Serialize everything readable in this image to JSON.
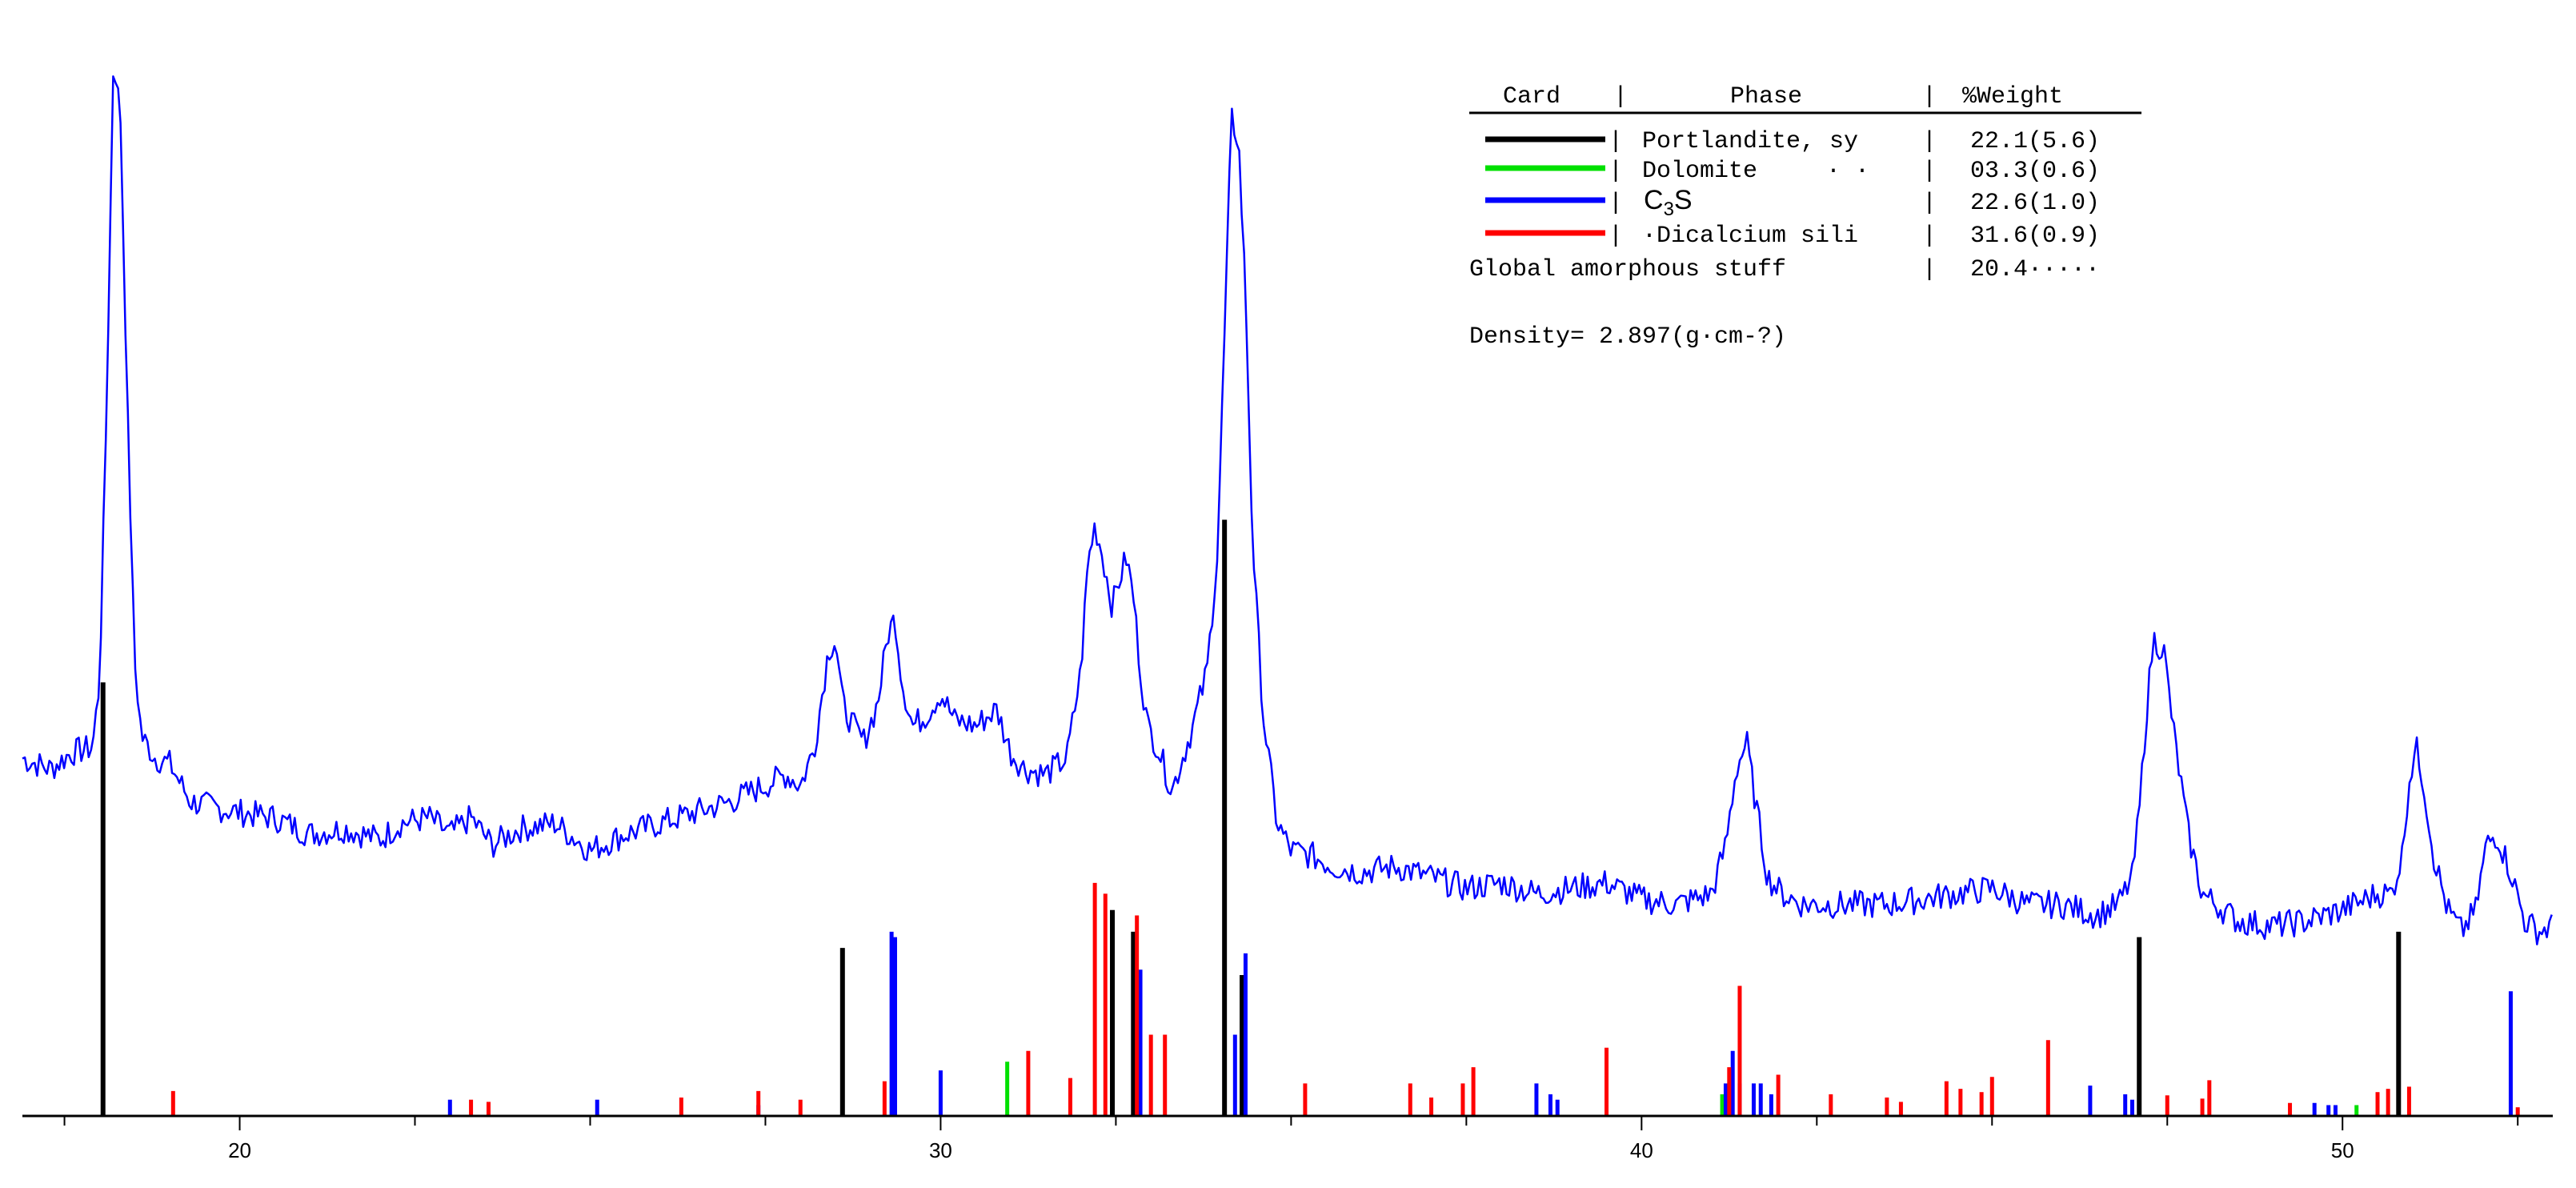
{
  "chart_data": {
    "type": "line",
    "title": "",
    "xlabel": "",
    "ylabel": "",
    "xlim": [
      16.9,
      53.0
    ],
    "ylim": [
      0,
      100
    ],
    "x_ticks": [
      20,
      30,
      40,
      50
    ],
    "x_tick_labels": [
      "20",
      "30",
      "40",
      "50"
    ],
    "grid": false,
    "colors": {
      "pattern": "#0000ff",
      "portlandite": "#000000",
      "dolomite": "#00e000",
      "c3s": "#0000ff",
      "dicalcium": "#ff0000",
      "axis": "#000000"
    },
    "pattern": {
      "x": [
        16.9,
        17.3,
        17.6,
        17.9,
        18.0,
        18.1,
        18.2,
        18.3,
        18.4,
        18.5,
        18.6,
        18.8,
        19.0,
        19.3,
        19.6,
        20.0,
        20.5,
        21.0,
        21.5,
        22.0,
        22.3,
        22.7,
        23.0,
        23.3,
        23.6,
        24.0,
        24.5,
        25.0,
        25.5,
        26.0,
        26.5,
        27.0,
        27.5,
        27.8,
        28.0,
        28.2,
        28.4,
        28.5,
        28.6,
        28.75,
        28.9,
        29.1,
        29.25,
        29.35,
        29.45,
        29.6,
        29.8,
        30.0,
        30.2,
        30.5,
        30.8,
        31.0,
        31.2,
        31.5,
        31.8,
        32.0,
        32.1,
        32.2,
        32.3,
        32.45,
        32.55,
        32.65,
        32.75,
        32.85,
        32.95,
        33.1,
        33.3,
        33.45,
        33.6,
        33.8,
        33.95,
        34.05,
        34.15,
        34.25,
        34.35,
        34.45,
        34.6,
        34.8,
        35.0,
        35.3,
        35.6,
        36.0,
        36.5,
        37.0,
        37.5,
        38.0,
        38.5,
        39.0,
        39.5,
        40.0,
        40.5,
        41.0,
        41.2,
        41.35,
        41.5,
        41.6,
        41.8,
        42.0,
        42.3,
        42.6,
        43.0,
        43.5,
        44.0,
        44.5,
        45.0,
        45.5,
        46.0,
        46.5,
        46.8,
        47.0,
        47.1,
        47.2,
        47.3,
        47.45,
        47.6,
        47.8,
        48.0,
        48.5,
        49.0,
        49.5,
        50.0,
        50.5,
        50.7,
        50.85,
        50.95,
        51.05,
        51.15,
        51.3,
        51.5,
        51.7,
        51.9,
        52.05,
        52.2,
        52.4,
        52.6,
        52.8,
        53.0
      ],
      "y": [
        33.0,
        32.0,
        33.5,
        34.0,
        40.0,
        65.0,
        98.0,
        92.0,
        65.0,
        42.0,
        35.0,
        33.0,
        32.5,
        29.0,
        28.5,
        28.0,
        27.5,
        26.0,
        26.5,
        25.5,
        27.0,
        27.5,
        26.0,
        27.5,
        25.0,
        26.5,
        27.0,
        24.5,
        26.0,
        27.0,
        28.0,
        29.0,
        30.5,
        31.5,
        30.5,
        34.0,
        43.0,
        44.0,
        38.0,
        36.0,
        34.5,
        38.0,
        44.5,
        46.0,
        40.0,
        36.0,
        37.0,
        39.0,
        36.5,
        36.0,
        37.5,
        33.5,
        32.0,
        31.5,
        33.0,
        41.0,
        51.0,
        54.5,
        52.0,
        47.0,
        49.5,
        51.5,
        48.0,
        41.0,
        36.0,
        34.0,
        30.0,
        33.0,
        36.0,
        41.0,
        52.0,
        72.0,
        92.0,
        90.0,
        76.0,
        53.0,
        37.0,
        27.0,
        24.5,
        24.0,
        23.0,
        22.5,
        23.0,
        22.0,
        21.0,
        21.5,
        20.5,
        21.0,
        21.5,
        20.0,
        19.5,
        20.5,
        25.0,
        32.0,
        34.5,
        30.0,
        22.0,
        20.5,
        19.5,
        19.5,
        19.5,
        19.5,
        20.0,
        20.5,
        21.0,
        19.5,
        19.5,
        18.5,
        19.5,
        22.0,
        28.0,
        37.0,
        44.0,
        43.0,
        35.0,
        26.0,
        20.5,
        18.0,
        17.5,
        18.0,
        19.0,
        20.5,
        20.5,
        24.0,
        31.0,
        34.0,
        31.0,
        24.0,
        19.0,
        17.0,
        19.0,
        25.0,
        26.0,
        22.5,
        18.0,
        17.0,
        17.5
      ]
    },
    "series": [
      {
        "name": "Portlandite, sy",
        "color": "#000000",
        "x": [
          18.05,
          28.6,
          32.45,
          32.75,
          34.05,
          34.3,
          47.1,
          50.8
        ],
        "y": [
          40,
          15.5,
          19,
          17,
          55,
          13,
          16.5,
          17
        ]
      },
      {
        "name": "Dolomite",
        "color": "#00e000",
        "x": [
          30.95,
          41.15,
          50.2
        ],
        "y": [
          5,
          2,
          1
        ]
      },
      {
        "name": "C3S",
        "color": "#0000ff",
        "x": [
          23.0,
          25.1,
          27.4,
          29.3,
          29.35,
          30.0,
          32.85,
          34.2,
          34.35,
          38.5,
          38.7,
          38.8,
          41.2,
          41.3,
          41.4,
          41.6,
          41.7,
          41.85,
          46.4,
          46.9,
          47.0,
          49.6,
          49.8,
          49.9,
          52.4
        ],
        "y": [
          1.5,
          1.5,
          1.0,
          17.0,
          16.5,
          4.2,
          13.5,
          7.5,
          15.0,
          3.0,
          2.0,
          1.5,
          3.0,
          6.0,
          3.0,
          3.0,
          3.0,
          2.0,
          2.8,
          2.0,
          1.5,
          1.2,
          1.0,
          1.0,
          11.5
        ]
      },
      {
        "name": "Dicalcium sili",
        "color": "#ff0000",
        "x": [
          19.05,
          23.3,
          23.55,
          26.3,
          27.4,
          28.0,
          29.2,
          31.25,
          31.85,
          32.2,
          32.35,
          32.8,
          33.0,
          33.2,
          35.2,
          36.7,
          37.0,
          37.45,
          37.6,
          39.5,
          41.25,
          41.4,
          41.95,
          42.7,
          43.5,
          43.7,
          44.35,
          44.55,
          44.85,
          45.0,
          45.8,
          47.5,
          48.0,
          48.1,
          49.25,
          50.5,
          50.65,
          50.95,
          52.5
        ],
        "y": [
          2.3,
          1.5,
          1.3,
          1.7,
          2.3,
          1.5,
          3.2,
          6.0,
          3.5,
          21.5,
          20.5,
          18.5,
          7.5,
          7.5,
          3.0,
          3.0,
          1.7,
          3.0,
          4.5,
          6.3,
          4.5,
          12.0,
          3.8,
          2.0,
          1.7,
          1.3,
          3.2,
          2.5,
          2.2,
          3.6,
          7.0,
          1.9,
          1.6,
          3.3,
          1.2,
          2.2,
          2.5,
          2.7,
          0.8
        ]
      }
    ]
  },
  "legend": {
    "headers": {
      "card": "Card",
      "phase": "Phase",
      "weight": "%Weight"
    },
    "sep": "|",
    "rows": [
      {
        "phase": "Portlandite, sy",
        "weight": "22.1(5.6)",
        "color": "#000000"
      },
      {
        "phase": "Dolomite",
        "phase_suffix": "· ·",
        "weight": "03.3(0.6)",
        "color": "#00e000"
      },
      {
        "phase_main": "C",
        "phase_sub": "3",
        "phase_end": "S",
        "weight": "22.6(1.0)",
        "color": "#0000ff"
      },
      {
        "phase": "·Dicalcium sili",
        "weight": "31.6(0.9)",
        "color": "#ff0000"
      }
    ],
    "amorphous": {
      "label": "Global amorphous stuff",
      "weight": "20.4·····"
    },
    "density": "Density= 2.897(g·cm-?)"
  }
}
